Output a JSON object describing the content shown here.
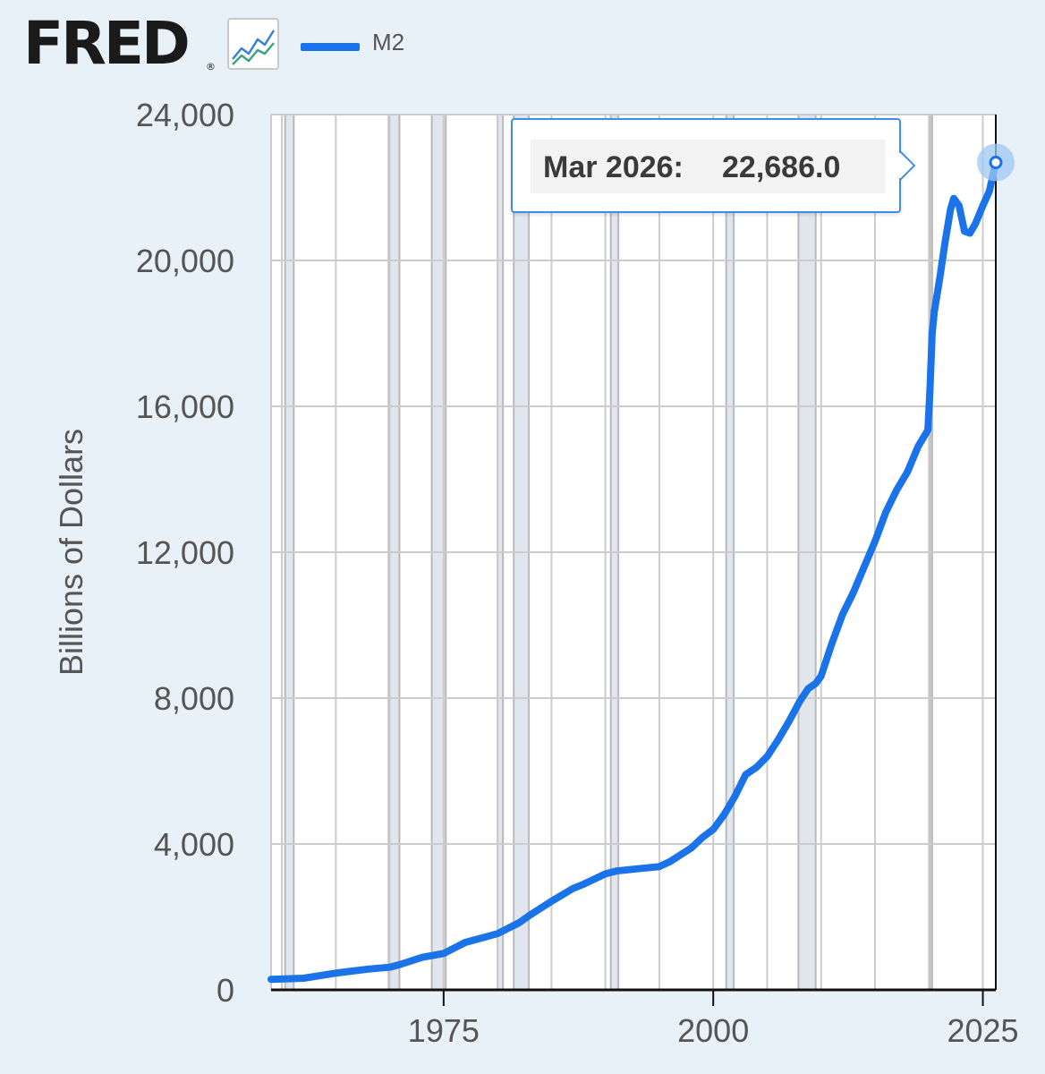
{
  "header": {
    "logo_text": "FRED",
    "logo_registered": "®",
    "graph_icon": "line-chart-icon"
  },
  "legend": {
    "series_label": "M2",
    "color": "#1a73e8"
  },
  "tooltip": {
    "date": "Mar 2026:",
    "value": "22,686.0"
  },
  "colors": {
    "background": "#e8f0f8",
    "plot_background": "#ffffff",
    "grid": "#cccccc",
    "recession_shading": "#e1e6ee",
    "series": "#1a73e8",
    "marker": "#1a73e8"
  },
  "chart_data": {
    "type": "line",
    "ylabel": "Billions of Dollars",
    "xlabel": "",
    "ylim": [
      0,
      24000
    ],
    "xlim": [
      1959.0,
      2026.2
    ],
    "y_ticks": [
      "0",
      "4,000",
      "8,000",
      "12,000",
      "16,000",
      "20,000",
      "24,000"
    ],
    "y_tick_values": [
      0,
      4000,
      8000,
      12000,
      16000,
      20000,
      24000
    ],
    "x_ticks": [
      "1975",
      "2000",
      "2025"
    ],
    "x_tick_values": [
      1975,
      2000,
      2025
    ],
    "grid": true,
    "recessions": [
      [
        1960.3,
        1961.1
      ],
      [
        1969.9,
        1970.9
      ],
      [
        1973.9,
        1975.2
      ],
      [
        1980.0,
        1980.5
      ],
      [
        1981.5,
        1982.9
      ],
      [
        1990.5,
        1991.2
      ],
      [
        2001.2,
        2001.9
      ],
      [
        2007.9,
        2009.5
      ],
      [
        2020.1,
        2020.3
      ]
    ],
    "series": [
      {
        "name": "M2",
        "x": [
          1959.0,
          1962.0,
          1965.0,
          1968.0,
          1970.0,
          1971.0,
          1973.0,
          1975.0,
          1977.0,
          1980.0,
          1982.0,
          1983.0,
          1985.0,
          1987.0,
          1988.0,
          1990.0,
          1991.0,
          1993.0,
          1995.0,
          1996.0,
          1998.0,
          1999.0,
          2000.0,
          2001.0,
          2002.0,
          2003.0,
          2004.0,
          2005.0,
          2006.0,
          2007.0,
          2008.0,
          2008.8,
          2009.5,
          2010.0,
          2011.0,
          2012.0,
          2013.0,
          2014.0,
          2015.0,
          2016.0,
          2017.0,
          2018.0,
          2019.0,
          2019.9,
          2020.1,
          2020.3,
          2020.5,
          2021.0,
          2021.5,
          2022.0,
          2022.3,
          2022.8,
          2023.3,
          2023.8,
          2024.3,
          2025.0,
          2025.6,
          2026.2
        ],
        "y": [
          290,
          320,
          460,
          570,
          620,
          700,
          890,
          1000,
          1300,
          1540,
          1840,
          2050,
          2430,
          2780,
          2900,
          3180,
          3260,
          3320,
          3380,
          3520,
          3900,
          4180,
          4400,
          4800,
          5300,
          5900,
          6100,
          6400,
          6850,
          7350,
          7900,
          8260,
          8400,
          8600,
          9500,
          10300,
          10900,
          11600,
          12300,
          13100,
          13700,
          14200,
          14900,
          15350,
          16500,
          18000,
          18600,
          19500,
          20500,
          21400,
          21700,
          21500,
          20800,
          20750,
          21000,
          21500,
          21900,
          22686
        ]
      }
    ]
  }
}
